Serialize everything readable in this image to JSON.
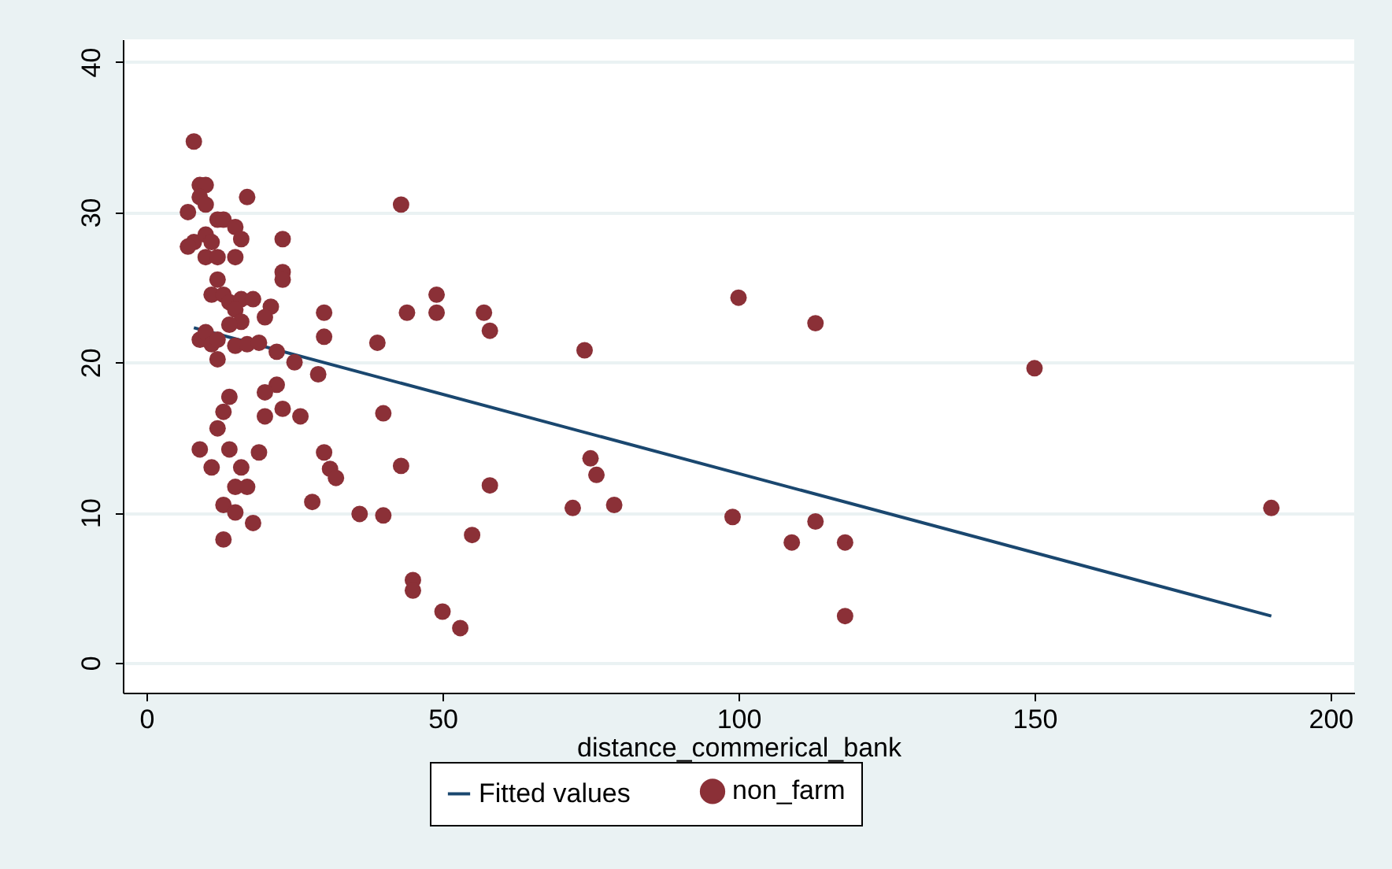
{
  "chart_data": {
    "type": "scatter",
    "xlabel": "distance_commerical_bank",
    "xlim": [
      -4,
      204
    ],
    "ylim": [
      -2,
      41.5
    ],
    "xticks": [
      0,
      50,
      100,
      150,
      200
    ],
    "yticks": [
      0,
      10,
      20,
      30,
      40
    ],
    "grid": "y",
    "legend": "bottom",
    "series": [
      {
        "name": "Fitted values",
        "type": "line",
        "color": "#1a476f",
        "line_style": "solid",
        "marker": "none",
        "x": [
          8,
          190
        ],
        "values": [
          22.3,
          3.1
        ]
      },
      {
        "name": "non_farm",
        "color": "#8b3037",
        "marker": "circle",
        "x": [
          8,
          9,
          10,
          9,
          10,
          7,
          17,
          43,
          8,
          7,
          10,
          11,
          12,
          13,
          15,
          23,
          16,
          10,
          12,
          15,
          23,
          23,
          12,
          11,
          13,
          14,
          16,
          18,
          21,
          15,
          49,
          57,
          44,
          49,
          30,
          100,
          113,
          58,
          20,
          16,
          14,
          9,
          10,
          11,
          12,
          15,
          17,
          19,
          22,
          30,
          39,
          74,
          150,
          12,
          25,
          29,
          22,
          20,
          14,
          23,
          13,
          26,
          20,
          40,
          12,
          9,
          14,
          19,
          30,
          75,
          31,
          43,
          16,
          11,
          32,
          76,
          58,
          15,
          17,
          13,
          28,
          72,
          79,
          190,
          15,
          36,
          40,
          99,
          113,
          18,
          55,
          13,
          109,
          118,
          45,
          45,
          50,
          53,
          118
        ],
        "values": [
          34.7,
          31.8,
          31.8,
          31,
          30.5,
          30,
          31,
          30.5,
          28,
          27.7,
          28.5,
          28,
          29.5,
          29.5,
          29,
          28.2,
          28.2,
          27,
          27,
          27,
          26,
          25.5,
          25.5,
          24.5,
          24.5,
          24,
          24.2,
          24.2,
          23.7,
          23.5,
          24.5,
          23.3,
          23.3,
          23.3,
          23.3,
          24.3,
          22.6,
          22.1,
          23,
          22.7,
          22.5,
          21.5,
          22,
          21.2,
          21.5,
          21.1,
          21.2,
          21.3,
          20.7,
          21.7,
          21.3,
          20.8,
          19.6,
          20.2,
          20,
          19.2,
          18.5,
          18,
          17.7,
          16.9,
          16.7,
          16.4,
          16.4,
          16.6,
          15.6,
          14.2,
          14.2,
          14,
          14,
          13.6,
          12.9,
          13.1,
          13,
          13,
          12.3,
          12.5,
          11.8,
          11.7,
          11.7,
          10.5,
          10.7,
          10.3,
          10.5,
          10.3,
          10,
          9.9,
          9.8,
          9.7,
          9.4,
          9.3,
          8.5,
          8.2,
          8,
          8,
          5.5,
          4.8,
          3.4,
          2.3,
          3.1
        ]
      }
    ]
  }
}
